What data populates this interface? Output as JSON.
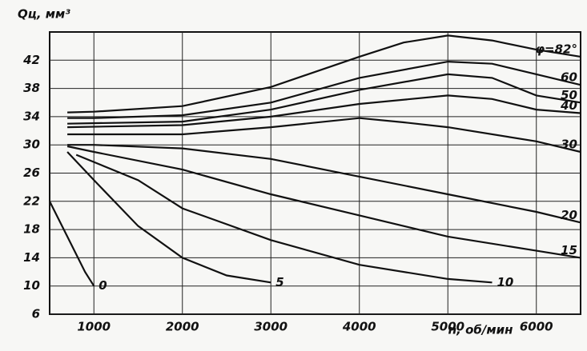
{
  "chart_data": {
    "type": "line",
    "y_label": "Qц, мм³",
    "x_label": "n, об/мин",
    "xlim": [
      500,
      6500
    ],
    "ylim": [
      6,
      46
    ],
    "xticks": [
      1000,
      2000,
      3000,
      4000,
      5000,
      6000
    ],
    "yticks": [
      6,
      10,
      14,
      18,
      22,
      26,
      30,
      34,
      38,
      42
    ],
    "grid": true,
    "color": "#111111",
    "series": [
      {
        "name": "φ=82°",
        "x": [
          700,
          1000,
          2000,
          3000,
          4000,
          4500,
          5000,
          5500,
          6000,
          6500
        ],
        "values": [
          34.6,
          34.7,
          35.5,
          38.2,
          42.5,
          44.5,
          45.5,
          44.8,
          43.5,
          42.5
        ]
      },
      {
        "name": "60",
        "x": [
          700,
          1000,
          2000,
          3000,
          4000,
          5000,
          5500,
          6000,
          6500
        ],
        "values": [
          33.8,
          33.8,
          34.2,
          36,
          39.5,
          41.8,
          41.5,
          40,
          38.5
        ]
      },
      {
        "name": "50",
        "x": [
          700,
          2000,
          3000,
          4000,
          5000,
          5500,
          6000,
          6500
        ],
        "values": [
          33,
          33.3,
          35,
          37.8,
          40,
          39.5,
          37,
          36
        ]
      },
      {
        "name": "40",
        "x": [
          700,
          2000,
          3000,
          4000,
          5000,
          5500,
          6000,
          6500
        ],
        "values": [
          32.5,
          32.8,
          34,
          35.8,
          37,
          36.5,
          35,
          34.5
        ]
      },
      {
        "name": "30",
        "x": [
          700,
          2000,
          3000,
          4000,
          4500,
          5000,
          6000,
          6500
        ],
        "values": [
          31.5,
          31.5,
          32.5,
          33.8,
          33.2,
          32.5,
          30.5,
          29
        ]
      },
      {
        "name": "20",
        "x": [
          700,
          1000,
          2000,
          3000,
          4000,
          5000,
          6000,
          6500
        ],
        "values": [
          30,
          30,
          29.5,
          28,
          25.5,
          23,
          20.5,
          19
        ]
      },
      {
        "name": "15",
        "x": [
          700,
          1000,
          2000,
          3000,
          4000,
          5000,
          6000,
          6500
        ],
        "values": [
          29.8,
          29,
          26.5,
          23,
          20,
          17,
          15,
          14
        ]
      },
      {
        "name": "10",
        "x": [
          800,
          1500,
          2000,
          3000,
          4000,
          5000,
          5500
        ],
        "values": [
          28.6,
          25,
          21,
          16.5,
          13,
          11,
          10.5
        ]
      },
      {
        "name": "5",
        "x": [
          700,
          1000,
          1500,
          2000,
          2500,
          3000
        ],
        "values": [
          29,
          25,
          18.5,
          14,
          11.5,
          10.5
        ]
      },
      {
        "name": "0",
        "x": [
          500,
          700,
          900,
          1000
        ],
        "values": [
          22,
          17,
          12,
          10
        ]
      }
    ]
  }
}
